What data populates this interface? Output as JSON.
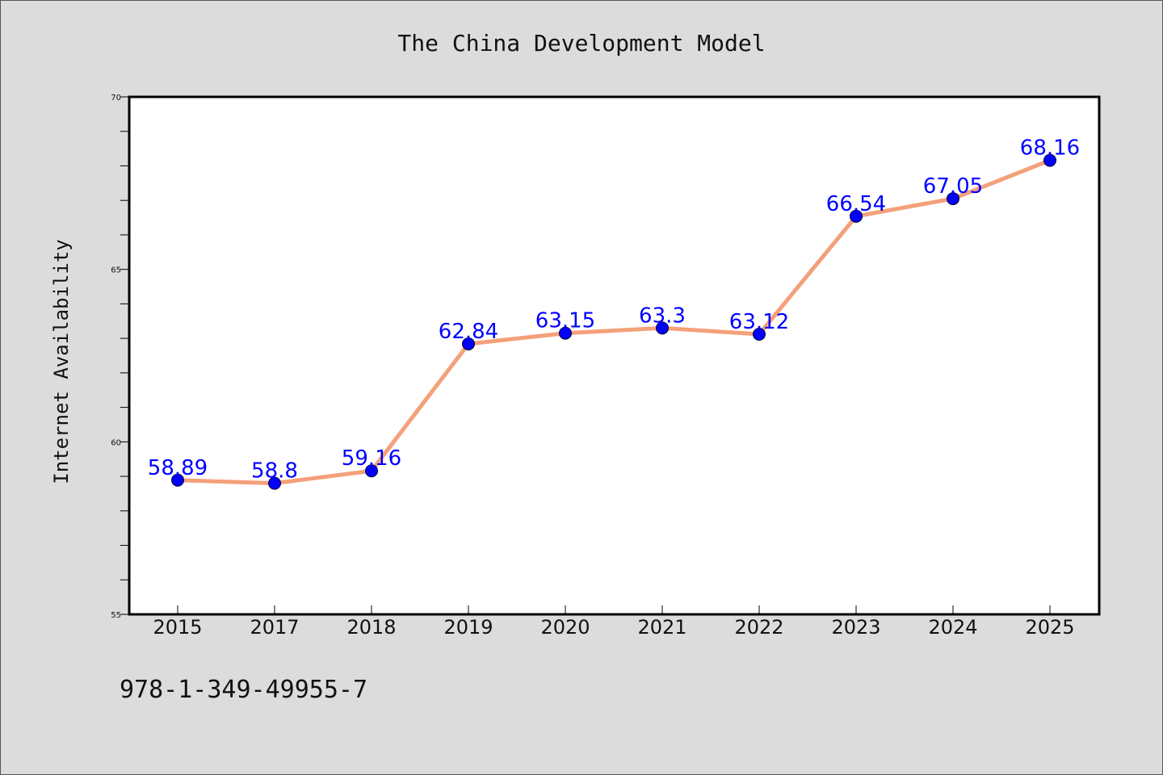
{
  "chart_data": {
    "type": "line",
    "title": "The China Development Model",
    "xlabel": "",
    "ylabel": "Internet Availability",
    "categories": [
      "2015",
      "2017",
      "2018",
      "2019",
      "2020",
      "2021",
      "2022",
      "2023",
      "2024",
      "2025"
    ],
    "series": [
      {
        "values": [
          58.89,
          58.8,
          59.16,
          62.84,
          63.15,
          63.3,
          63.12,
          66.54,
          67.05,
          68.16
        ],
        "color": "#f4a07a",
        "marker_color": "#0000ff"
      }
    ],
    "data_labels": [
      "58.89",
      "58.8",
      "59.16",
      "62.84",
      "63.15",
      "63.3",
      "63.12",
      "66.54",
      "67.05",
      "68.16"
    ],
    "ylim": [
      55,
      70
    ],
    "yticks": [
      "55",
      "60",
      "65",
      "70"
    ],
    "grid": false,
    "label_color": "#0000ff"
  },
  "footer": {
    "isbn": "978-1-349-49955-7"
  }
}
